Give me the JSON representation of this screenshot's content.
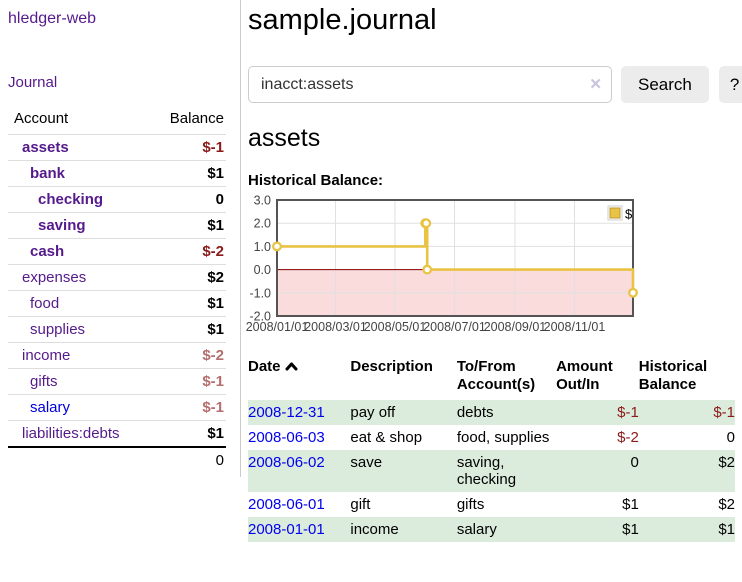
{
  "sidebar": {
    "brand": "hledger-web",
    "journal_link": "Journal",
    "accounts_table": {
      "headers": [
        "Account",
        "Balance"
      ],
      "rows": [
        {
          "account": "assets",
          "indent": 1,
          "bold": true,
          "balance": "$-1",
          "balance_style": "neg-strong"
        },
        {
          "account": "bank",
          "indent": 2,
          "bold": true,
          "balance": "$1",
          "balance_style": ""
        },
        {
          "account": "checking",
          "indent": 3,
          "bold": true,
          "balance": "0",
          "balance_style": ""
        },
        {
          "account": "saving",
          "indent": 3,
          "bold": true,
          "balance": "$1",
          "balance_style": ""
        },
        {
          "account": "cash",
          "indent": 2,
          "bold": true,
          "balance": "$-2",
          "balance_style": "neg-strong"
        },
        {
          "account": "expenses",
          "indent": 1,
          "bold": false,
          "balance": "$2",
          "balance_style": ""
        },
        {
          "account": "food",
          "indent": 2,
          "bold": false,
          "balance": "$1",
          "balance_style": ""
        },
        {
          "account": "supplies",
          "indent": 2,
          "bold": false,
          "balance": "$1",
          "balance_style": ""
        },
        {
          "account": "income",
          "indent": 1,
          "bold": false,
          "balance": "$-2",
          "balance_style": "neg-soft"
        },
        {
          "account": "gifts",
          "indent": 2,
          "bold": false,
          "balance": "$-1",
          "balance_style": "neg-soft"
        },
        {
          "account": "salary",
          "indent": 2,
          "bold": false,
          "balance": "$-1",
          "balance_style": "neg-soft",
          "link_color": "blue"
        },
        {
          "account": "liabilities:debts",
          "indent": 1,
          "bold": false,
          "balance": "$1",
          "balance_style": ""
        }
      ],
      "total": "0"
    }
  },
  "main": {
    "title": "sample.journal",
    "search": {
      "value": "inacct:assets",
      "clear_icon": "✕",
      "search_button": "Search",
      "help_button": "?"
    },
    "account_heading": "assets",
    "chart_title": "Historical Balance:",
    "register": {
      "headers": [
        "Date",
        "Description",
        "To/From Account(s)",
        "Amount Out/In",
        "Historical Balance"
      ],
      "sort": {
        "column": "Date",
        "direction": "ascending",
        "icon": "chevron-up"
      },
      "rows": [
        {
          "date": "2008-12-31",
          "description": "pay off",
          "accounts": "debts",
          "amount": "$-1",
          "amount_neg": true,
          "balance": "$-1",
          "balance_neg": true,
          "shaded": true
        },
        {
          "date": "2008-06-03",
          "description": "eat & shop",
          "accounts": "food, supplies",
          "amount": "$-2",
          "amount_neg": true,
          "balance": "0",
          "balance_neg": false,
          "shaded": false
        },
        {
          "date": "2008-06-02",
          "description": "save",
          "accounts": "saving, checking",
          "amount": "0",
          "amount_neg": false,
          "balance": "$2",
          "balance_neg": false,
          "shaded": true
        },
        {
          "date": "2008-06-01",
          "description": "gift",
          "accounts": "gifts",
          "amount": "$1",
          "amount_neg": false,
          "balance": "$2",
          "balance_neg": false,
          "shaded": false
        },
        {
          "date": "2008-01-01",
          "description": "income",
          "accounts": "salary",
          "amount": "$1",
          "amount_neg": false,
          "balance": "$1",
          "balance_neg": false,
          "shaded": true
        }
      ]
    }
  },
  "colors": {
    "link_purple": "#551a8b",
    "link_blue": "#0000dd",
    "date_link_blue": "#0000ee",
    "negative_strong": "#8b1a1a",
    "negative_soft": "#b56e6e",
    "row_shade_green": "#dcecdc",
    "button_gray": "#ececec",
    "line": "#e9c344",
    "negative_fill": "#fbdcdc",
    "zero_line": "#8b0000",
    "border": "#545454",
    "grid": "#e0e0e0",
    "tick_text": "#444444"
  },
  "chart_data": {
    "type": "line",
    "title": "Historical Balance",
    "step": true,
    "legend_position": "top-right",
    "grid": true,
    "x_domain": [
      "2008-01-01",
      "2008-12-31"
    ],
    "ylim": [
      -2,
      3
    ],
    "y_ticks": [
      {
        "value": 3,
        "label": "3.0"
      },
      {
        "value": 2,
        "label": "2.0"
      },
      {
        "value": 1,
        "label": "1.0"
      },
      {
        "value": 0,
        "label": "0.0"
      },
      {
        "value": -1,
        "label": "-1.0"
      },
      {
        "value": -2,
        "label": "-2.0"
      }
    ],
    "x_ticks": [
      {
        "date": "2008-01-01",
        "label": "2008/01/01"
      },
      {
        "date": "2008-03-01",
        "label": "2008/03/01"
      },
      {
        "date": "2008-05-01",
        "label": "2008/05/01"
      },
      {
        "date": "2008-07-01",
        "label": "2008/07/01"
      },
      {
        "date": "2008-09-01",
        "label": "2008/09/01"
      },
      {
        "date": "2008-11-01",
        "label": "2008/11/01"
      }
    ],
    "series": [
      {
        "name": "$",
        "points": [
          {
            "date": "2008-01-01",
            "value": 1
          },
          {
            "date": "2008-06-01",
            "value": 2
          },
          {
            "date": "2008-06-02",
            "value": 2
          },
          {
            "date": "2008-06-03",
            "value": 0
          },
          {
            "date": "2008-12-31",
            "value": -1
          }
        ]
      }
    ]
  }
}
